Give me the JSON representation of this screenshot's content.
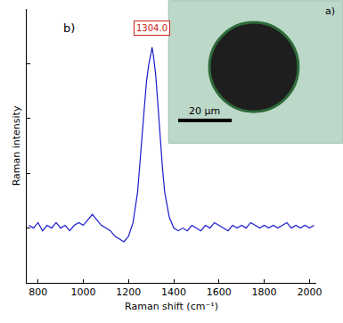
{
  "chart_data": {
    "type": "line",
    "panel_label": "b)",
    "x_label": "Raman shift (cm⁻¹)",
    "y_label": "Raman intensity",
    "color": "#1a1acc",
    "x": [
      760,
      780,
      800,
      820,
      840,
      860,
      880,
      900,
      920,
      940,
      960,
      980,
      1000,
      1020,
      1040,
      1060,
      1080,
      1100,
      1120,
      1140,
      1160,
      1180,
      1200,
      1220,
      1240,
      1260,
      1270,
      1280,
      1290,
      1300,
      1304,
      1310,
      1320,
      1330,
      1340,
      1350,
      1360,
      1380,
      1400,
      1420,
      1440,
      1460,
      1480,
      1500,
      1520,
      1540,
      1560,
      1580,
      1600,
      1620,
      1640,
      1660,
      1680,
      1700,
      1720,
      1740,
      1760,
      1780,
      1800,
      1820,
      1840,
      1860,
      1880,
      1900,
      1920,
      1940,
      1960,
      1980,
      2000,
      2020
    ],
    "values": [
      0.21,
      0.2,
      0.22,
      0.19,
      0.21,
      0.2,
      0.22,
      0.2,
      0.21,
      0.19,
      0.21,
      0.22,
      0.21,
      0.23,
      0.25,
      0.23,
      0.21,
      0.2,
      0.19,
      0.17,
      0.16,
      0.15,
      0.17,
      0.22,
      0.33,
      0.52,
      0.64,
      0.74,
      0.8,
      0.84,
      0.86,
      0.83,
      0.76,
      0.65,
      0.53,
      0.42,
      0.33,
      0.24,
      0.2,
      0.19,
      0.2,
      0.19,
      0.21,
      0.2,
      0.19,
      0.21,
      0.2,
      0.22,
      0.21,
      0.2,
      0.19,
      0.21,
      0.2,
      0.21,
      0.2,
      0.22,
      0.21,
      0.2,
      0.21,
      0.2,
      0.21,
      0.2,
      0.21,
      0.22,
      0.2,
      0.21,
      0.2,
      0.21,
      0.2,
      0.21
    ],
    "xlim": [
      750,
      2030
    ],
    "xticks": [
      800,
      1000,
      1200,
      1400,
      1600,
      1800,
      2000
    ],
    "ylim": [
      0,
      1
    ],
    "yticks": [
      0,
      0.2,
      0.4,
      0.6,
      0.8,
      1
    ],
    "tick_labels": "x",
    "grid": false,
    "annotations": [
      {
        "text": "1304.0",
        "x": 1304,
        "y": 0.93,
        "color": "#cc2222"
      }
    ],
    "inset": {
      "label": "a)",
      "scale_bar": "20 µm"
    }
  }
}
